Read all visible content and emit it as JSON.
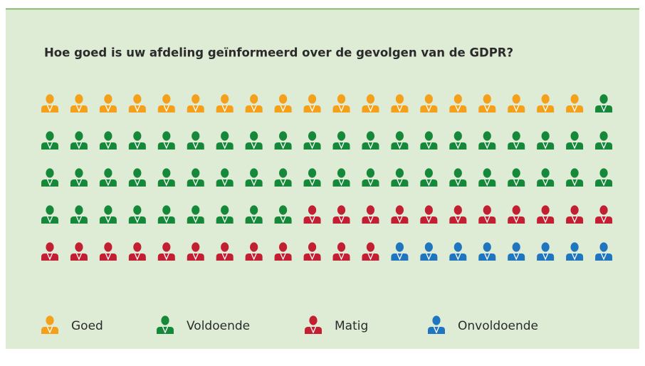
{
  "chart_data": {
    "type": "pictogram",
    "title": "Hoe goed is uw afdeling geïnformeerd over de gevolgen van de GDPR?",
    "categories": [
      "Goed",
      "Voldoende",
      "Matig",
      "Onvoldoende"
    ],
    "values": [
      19,
      50,
      23,
      8
    ],
    "colors": [
      "#f5a01a",
      "#16883a",
      "#c21f32",
      "#1f76bf"
    ]
  }
}
